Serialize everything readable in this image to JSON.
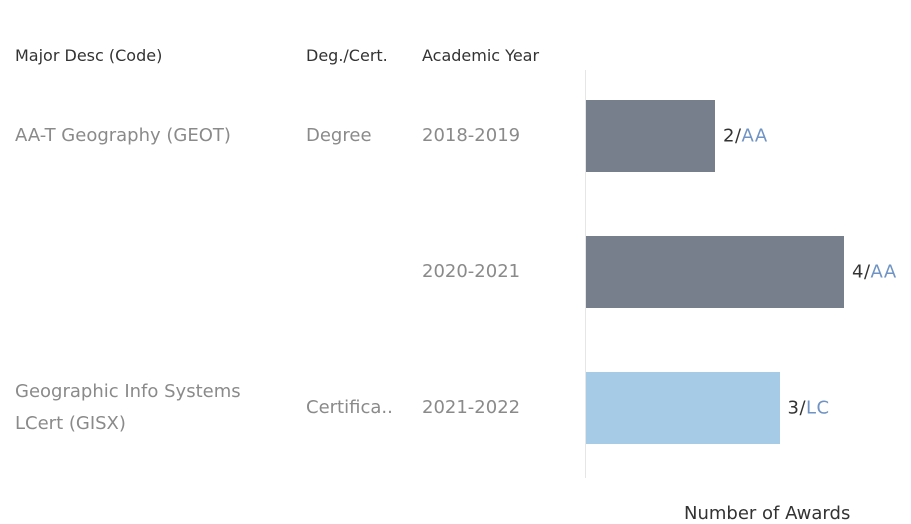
{
  "chart_data": {
    "type": "bar",
    "orientation": "horizontal",
    "columns": [
      "Major Desc (Code)",
      "Deg./Cert.",
      "Academic Year"
    ],
    "majors": [
      "AA-T Geography (GEOT)",
      null,
      "Geographic Info Systems\nLCert (GISX)"
    ],
    "degrees": [
      "Degree",
      null,
      "Certifica.."
    ],
    "categories": [
      "2018-2019",
      "2020-2021",
      "2021-2022"
    ],
    "values": [
      2,
      4,
      3
    ],
    "award_types": [
      "AA",
      "AA",
      "LC"
    ],
    "separator": "/",
    "colors": [
      "#767f8b",
      "#767f8b",
      "#a6cbe7"
    ],
    "xlim": [
      0,
      4
    ],
    "x_label": "Number of Awards"
  }
}
